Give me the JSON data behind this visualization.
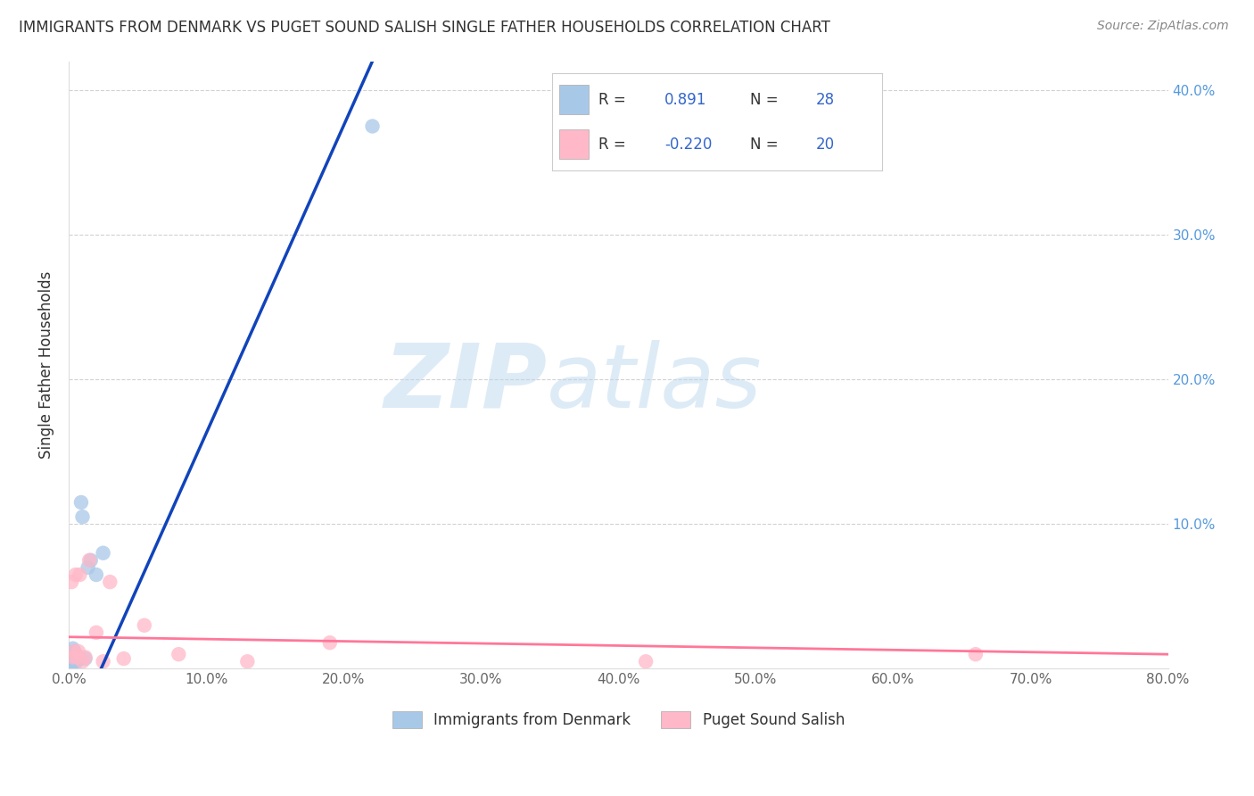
{
  "title": "IMMIGRANTS FROM DENMARK VS PUGET SOUND SALISH SINGLE FATHER HOUSEHOLDS CORRELATION CHART",
  "source": "Source: ZipAtlas.com",
  "ylabel": "Single Father Households",
  "watermark_zip": "ZIP",
  "watermark_atlas": "atlas",
  "xlim": [
    0.0,
    0.8
  ],
  "ylim": [
    0.0,
    0.42
  ],
  "xticks": [
    0.0,
    0.1,
    0.2,
    0.3,
    0.4,
    0.5,
    0.6,
    0.7,
    0.8
  ],
  "xticklabels": [
    "0.0%",
    "10.0%",
    "20.0%",
    "30.0%",
    "40.0%",
    "50.0%",
    "60.0%",
    "70.0%",
    "80.0%"
  ],
  "yticks": [
    0.1,
    0.2,
    0.3,
    0.4
  ],
  "yticklabels": [
    "10.0%",
    "20.0%",
    "30.0%",
    "40.0%"
  ],
  "legend1_r": "0.891",
  "legend1_n": "28",
  "legend2_r": "-0.220",
  "legend2_n": "20",
  "blue_color": "#A8C8E8",
  "pink_color": "#FFB8C8",
  "line_blue": "#1144BB",
  "line_pink": "#FF7799",
  "blue_scatter_x": [
    0.001,
    0.001,
    0.001,
    0.002,
    0.002,
    0.002,
    0.003,
    0.003,
    0.003,
    0.003,
    0.004,
    0.004,
    0.004,
    0.005,
    0.005,
    0.005,
    0.006,
    0.006,
    0.007,
    0.008,
    0.009,
    0.01,
    0.012,
    0.014,
    0.016,
    0.02,
    0.025,
    0.221
  ],
  "blue_scatter_y": [
    0.003,
    0.005,
    0.008,
    0.003,
    0.006,
    0.01,
    0.004,
    0.007,
    0.01,
    0.014,
    0.005,
    0.008,
    0.012,
    0.004,
    0.007,
    0.01,
    0.006,
    0.009,
    0.008,
    0.007,
    0.115,
    0.105,
    0.007,
    0.07,
    0.075,
    0.065,
    0.08,
    0.375
  ],
  "pink_scatter_x": [
    0.002,
    0.003,
    0.004,
    0.005,
    0.006,
    0.007,
    0.008,
    0.01,
    0.012,
    0.015,
    0.02,
    0.025,
    0.03,
    0.04,
    0.055,
    0.08,
    0.13,
    0.19,
    0.42,
    0.66
  ],
  "pink_scatter_y": [
    0.06,
    0.008,
    0.012,
    0.065,
    0.008,
    0.012,
    0.065,
    0.005,
    0.008,
    0.075,
    0.025,
    0.005,
    0.06,
    0.007,
    0.03,
    0.01,
    0.005,
    0.018,
    0.005,
    0.01
  ],
  "blue_line_x": [
    0.0,
    0.221
  ],
  "blue_line_y": [
    -0.05,
    0.42
  ],
  "pink_line_x": [
    0.0,
    0.8
  ],
  "pink_line_y": [
    0.022,
    0.01
  ],
  "background_color": "#FFFFFF",
  "grid_color": "#CCCCCC",
  "title_color": "#333333",
  "axis_tick_color": "#666666",
  "yaxis_color": "#5599DD"
}
